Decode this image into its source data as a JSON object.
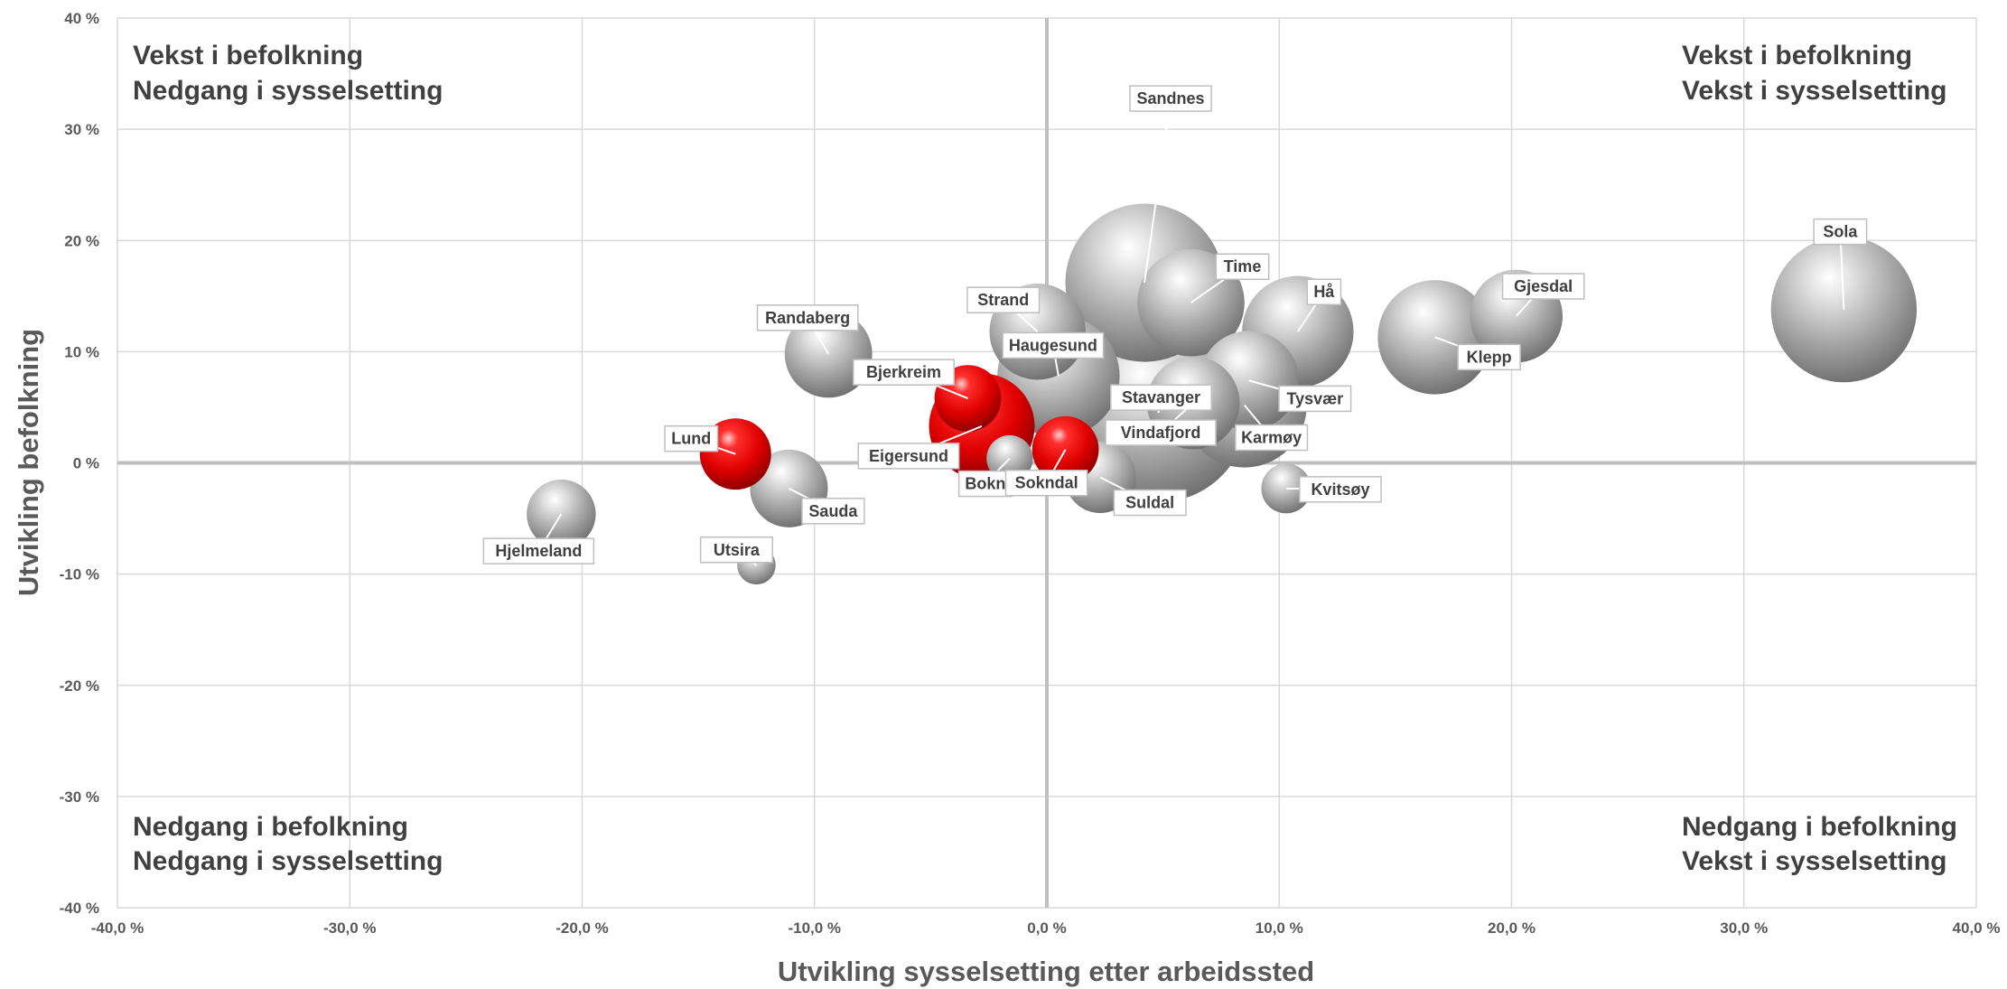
{
  "chart_data": {
    "type": "bubble",
    "xlabel": "Utvikling sysselsetting etter arbeidssted",
    "ylabel": "Utvikling befolkning",
    "xlim": [
      -40,
      40
    ],
    "ylim": [
      -40,
      40
    ],
    "x_ticks": [
      "-40,0 %",
      "-30,0 %",
      "-20,0 %",
      "-10,0 %",
      "0,0 %",
      "10,0 %",
      "20,0 %",
      "30,0 %",
      "40,0 %"
    ],
    "y_ticks": [
      "40 %",
      "30 %",
      "20 %",
      "10 %",
      "0 %",
      "-10 %",
      "-20 %",
      "-30 %",
      "-40 %"
    ],
    "grid": true,
    "colors": {
      "gray_bubble": "#9a9a9a",
      "red_bubble": "#e00000",
      "grid": "#d9d9d9",
      "zero_line": "#bfbfbf"
    },
    "quadrants": {
      "top_left": [
        "Vekst i befolkning",
        "Nedgang i sysselsetting"
      ],
      "top_right": [
        "Vekst i befolkning",
        "Vekst i sysselsetting"
      ],
      "bottom_left": [
        "Nedgang i befolkning",
        "Nedgang i sysselsetting"
      ],
      "bottom_right": [
        "Nedgang i befolkning",
        "Vekst i sysselsetting"
      ]
    },
    "points": [
      {
        "name": "Sandnes",
        "x": 4.2,
        "y": 16.2,
        "size": 78,
        "color": "gray"
      },
      {
        "name": "Stavanger",
        "x": 4.8,
        "y": 4.5,
        "size": 100,
        "color": "gray"
      },
      {
        "name": "Haugesund",
        "x": 0.5,
        "y": 7.8,
        "size": 46,
        "color": "gray"
      },
      {
        "name": "Karmøy",
        "x": 8.5,
        "y": 5.2,
        "size": 48,
        "color": "gray"
      },
      {
        "name": "Strand",
        "x": -0.4,
        "y": 11.8,
        "size": 28,
        "color": "gray"
      },
      {
        "name": "Time",
        "x": 6.2,
        "y": 14.4,
        "size": 35,
        "color": "gray"
      },
      {
        "name": "Tysvær",
        "x": 8.7,
        "y": 7.4,
        "size": 30,
        "color": "gray"
      },
      {
        "name": "Vindafjord",
        "x": 6.3,
        "y": 5.4,
        "size": 26,
        "color": "gray"
      },
      {
        "name": "Hå",
        "x": 10.8,
        "y": 11.8,
        "size": 38,
        "color": "gray"
      },
      {
        "name": "Klepp",
        "x": 16.7,
        "y": 11.3,
        "size": 40,
        "color": "gray"
      },
      {
        "name": "Gjesdal",
        "x": 20.2,
        "y": 13.2,
        "size": 26,
        "color": "gray"
      },
      {
        "name": "Sola",
        "x": 34.3,
        "y": 13.8,
        "size": 66,
        "color": "gray"
      },
      {
        "name": "Randaberg",
        "x": -9.4,
        "y": 9.8,
        "size": 23,
        "color": "gray"
      },
      {
        "name": "Suldal",
        "x": 2.3,
        "y": -1.3,
        "size": 15,
        "color": "gray"
      },
      {
        "name": "Sauda",
        "x": -11.1,
        "y": -2.3,
        "size": 18,
        "color": "gray"
      },
      {
        "name": "Hjelmeland",
        "x": -20.9,
        "y": -4.6,
        "size": 14,
        "color": "gray"
      },
      {
        "name": "Kvitsøy",
        "x": 10.3,
        "y": -2.3,
        "size": 7,
        "color": "gray"
      },
      {
        "name": "Bokn",
        "x": -1.6,
        "y": 0.4,
        "size": 6,
        "color": "gray"
      },
      {
        "name": "Utsira",
        "x": -12.5,
        "y": -9.2,
        "size": 4,
        "color": "gray"
      },
      {
        "name": "Eigersund",
        "x": -2.8,
        "y": 3.3,
        "size": 34,
        "color": "red"
      },
      {
        "name": "Bjerkreim",
        "x": -3.4,
        "y": 5.8,
        "size": 13,
        "color": "red"
      },
      {
        "name": "Lund",
        "x": -13.4,
        "y": 0.8,
        "size": 15,
        "color": "red"
      },
      {
        "name": "Sokndal",
        "x": 0.8,
        "y": 1.2,
        "size": 13,
        "color": "red"
      }
    ]
  }
}
